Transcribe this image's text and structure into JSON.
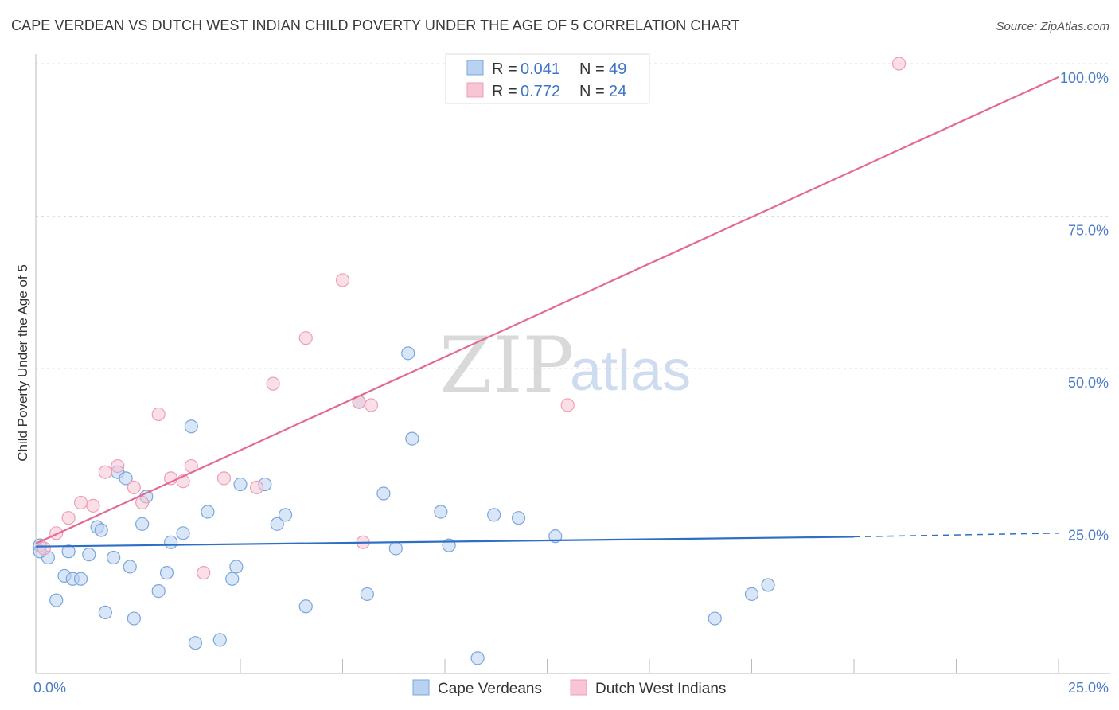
{
  "title": "CAPE VERDEAN VS DUTCH WEST INDIAN CHILD POVERTY UNDER THE AGE OF 5 CORRELATION CHART",
  "source": "Source: ZipAtlas.com",
  "watermark": {
    "part1": "ZIP",
    "part2": "atlas"
  },
  "legend": {
    "r_label": "R =",
    "n_label": "N =",
    "items": [
      {
        "r": "0.041",
        "n": "49"
      },
      {
        "r": "0.772",
        "n": "24"
      }
    ]
  },
  "bottom_legend": [
    "Cape Verdeans",
    "Dutch West Indians"
  ],
  "colors": {
    "blue_fill": "#b9d2f0",
    "blue_stroke": "#7aa6dc",
    "blue_line": "#2e6fc6",
    "pink_fill": "#f7c5d4",
    "pink_stroke": "#ef9db6",
    "pink_line": "#e26a93",
    "grid": "#dddddd",
    "tick_text": "#4a7cc4"
  },
  "chart_data": {
    "type": "scatter",
    "title": "CAPE VERDEAN VS DUTCH WEST INDIAN CHILD POVERTY UNDER THE AGE OF 5 CORRELATION CHART",
    "xlabel": "",
    "ylabel": "Child Poverty Under the Age of 5",
    "xlim": [
      0,
      25
    ],
    "ylim": [
      0,
      100
    ],
    "x_tick_labels": [
      "0.0%",
      "25.0%"
    ],
    "y_ticks": [
      25,
      50,
      75,
      100
    ],
    "y_tick_labels": [
      "25.0%",
      "50.0%",
      "75.0%",
      "100.0%"
    ],
    "grid": true,
    "legend_position": "top-center",
    "series": [
      {
        "name": "Cape Verdeans",
        "points": [
          [
            0.1,
            21.0
          ],
          [
            0.3,
            19.0
          ],
          [
            0.5,
            12.0
          ],
          [
            0.7,
            16.0
          ],
          [
            0.8,
            20.0
          ],
          [
            0.9,
            15.5
          ],
          [
            1.1,
            15.5
          ],
          [
            1.3,
            19.5
          ],
          [
            1.5,
            24.0
          ],
          [
            1.6,
            23.5
          ],
          [
            1.7,
            10.0
          ],
          [
            1.9,
            19.0
          ],
          [
            2.0,
            33.0
          ],
          [
            2.2,
            32.0
          ],
          [
            2.3,
            17.5
          ],
          [
            2.4,
            9.0
          ],
          [
            2.6,
            24.5
          ],
          [
            2.7,
            29.0
          ],
          [
            3.0,
            13.5
          ],
          [
            3.2,
            16.5
          ],
          [
            3.3,
            21.5
          ],
          [
            3.6,
            23.0
          ],
          [
            3.8,
            40.5
          ],
          [
            3.9,
            5.0
          ],
          [
            4.2,
            26.5
          ],
          [
            4.5,
            5.5
          ],
          [
            4.8,
            15.5
          ],
          [
            4.9,
            17.5
          ],
          [
            5.0,
            31.0
          ],
          [
            5.6,
            31.0
          ],
          [
            5.9,
            24.5
          ],
          [
            6.1,
            26.0
          ],
          [
            6.6,
            11.0
          ],
          [
            7.9,
            44.5
          ],
          [
            8.1,
            13.0
          ],
          [
            8.5,
            29.5
          ],
          [
            8.8,
            20.5
          ],
          [
            9.1,
            52.5
          ],
          [
            9.2,
            38.5
          ],
          [
            9.9,
            26.5
          ],
          [
            10.1,
            21.0
          ],
          [
            10.8,
            2.5
          ],
          [
            11.2,
            26.0
          ],
          [
            11.8,
            25.5
          ],
          [
            12.7,
            22.5
          ],
          [
            16.6,
            9.0
          ],
          [
            17.5,
            13.0
          ],
          [
            17.9,
            14.5
          ],
          [
            0.1,
            20.0
          ]
        ],
        "trend": {
          "x1": 0,
          "y1": 20.8,
          "x2": 20.0,
          "y2": 22.4,
          "dashed_to_x": 25.0,
          "dashed_to_y": 23.0
        }
      },
      {
        "name": "Dutch West Indians",
        "points": [
          [
            0.2,
            20.5
          ],
          [
            0.5,
            23.0
          ],
          [
            0.8,
            25.5
          ],
          [
            1.1,
            28.0
          ],
          [
            1.4,
            27.5
          ],
          [
            1.7,
            33.0
          ],
          [
            2.0,
            34.0
          ],
          [
            2.4,
            30.5
          ],
          [
            2.6,
            28.0
          ],
          [
            3.0,
            42.5
          ],
          [
            3.3,
            32.0
          ],
          [
            3.6,
            31.5
          ],
          [
            3.8,
            34.0
          ],
          [
            4.1,
            16.5
          ],
          [
            4.6,
            32.0
          ],
          [
            5.4,
            30.5
          ],
          [
            5.8,
            47.5
          ],
          [
            6.6,
            55.0
          ],
          [
            7.5,
            64.5
          ],
          [
            7.9,
            44.5
          ],
          [
            8.0,
            21.5
          ],
          [
            8.2,
            44.0
          ],
          [
            13.0,
            44.0
          ],
          [
            21.1,
            100.0
          ]
        ],
        "trend": {
          "x1": 0,
          "y1": 21.3,
          "x2": 25.0,
          "y2": 97.8
        }
      }
    ]
  }
}
